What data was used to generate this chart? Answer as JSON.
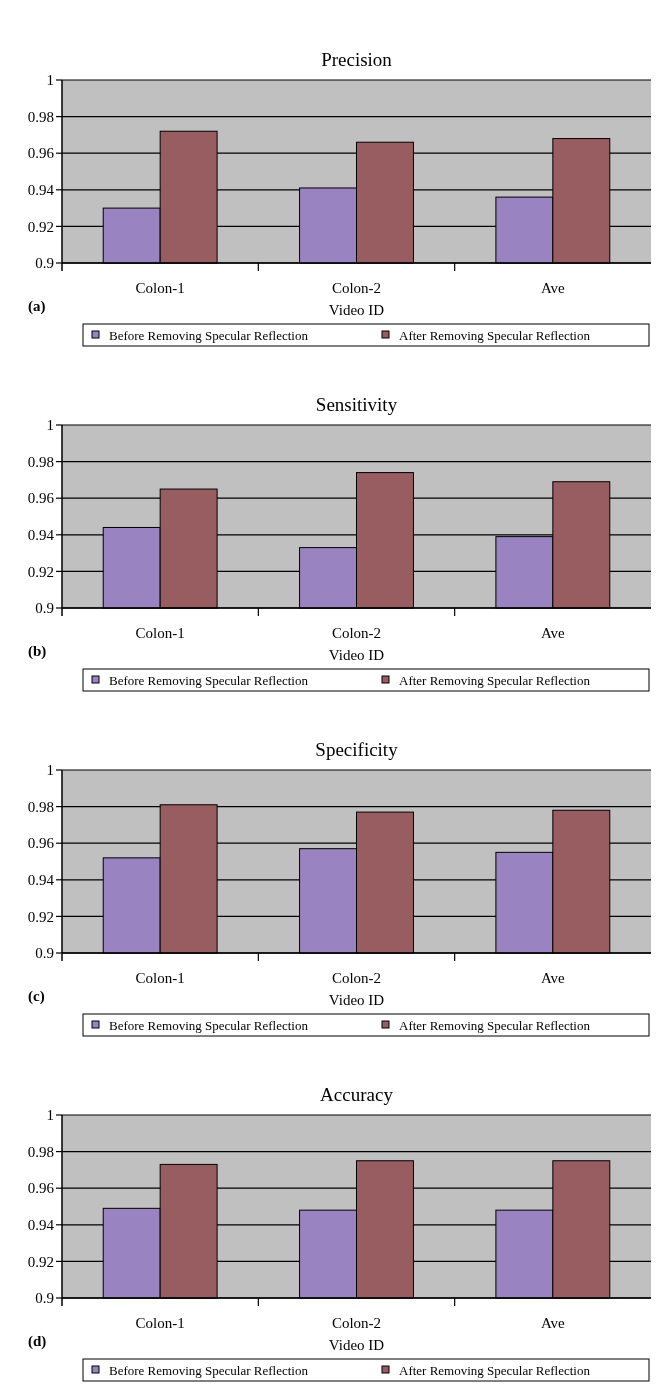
{
  "chart_data": [
    {
      "type": "bar",
      "title": "Precision",
      "xlabel": "Video ID",
      "categories": [
        "Colon-1",
        "Colon-2",
        "Ave"
      ],
      "annotations": [
        "(a)"
      ],
      "ylim": [
        0.9,
        1
      ],
      "yticks": [
        0.9,
        0.92,
        0.94,
        0.96,
        0.98,
        1
      ],
      "grid": "y",
      "legend": "bottom",
      "series": [
        {
          "name": "Before Removing Specular Reflection",
          "color": "#9983c0",
          "values": [
            0.93,
            0.941,
            0.936
          ]
        },
        {
          "name": "After Removing Specular Reflection",
          "color": "#985d60",
          "values": [
            0.972,
            0.966,
            0.968
          ]
        }
      ]
    },
    {
      "type": "bar",
      "title": "Sensitivity",
      "xlabel": "Video ID",
      "categories": [
        "Colon-1",
        "Colon-2",
        "Ave"
      ],
      "annotations": [
        "(b)"
      ],
      "ylim": [
        0.9,
        1
      ],
      "yticks": [
        0.9,
        0.92,
        0.94,
        0.96,
        0.98,
        1
      ],
      "grid": "y",
      "legend": "bottom",
      "series": [
        {
          "name": "Before Removing Specular Reflection",
          "color": "#9983c0",
          "values": [
            0.944,
            0.933,
            0.939
          ]
        },
        {
          "name": "After Removing Specular Reflection",
          "color": "#985d60",
          "values": [
            0.965,
            0.974,
            0.969
          ]
        }
      ]
    },
    {
      "type": "bar",
      "title": "Specificity",
      "xlabel": "Video ID",
      "categories": [
        "Colon-1",
        "Colon-2",
        "Ave"
      ],
      "annotations": [
        "(c)"
      ],
      "ylim": [
        0.9,
        1
      ],
      "yticks": [
        0.9,
        0.92,
        0.94,
        0.96,
        0.98,
        1
      ],
      "grid": "y",
      "legend": "bottom",
      "series": [
        {
          "name": "Before Removing Specular Reflection",
          "color": "#9983c0",
          "values": [
            0.952,
            0.957,
            0.955
          ]
        },
        {
          "name": "After Removing Specular Reflection",
          "color": "#985d60",
          "values": [
            0.981,
            0.977,
            0.978
          ]
        }
      ]
    },
    {
      "type": "bar",
      "title": "Accuracy",
      "xlabel": "Video ID",
      "categories": [
        "Colon-1",
        "Colon-2",
        "Ave"
      ],
      "annotations": [
        "(d)"
      ],
      "ylim": [
        0.9,
        1
      ],
      "yticks": [
        0.9,
        0.92,
        0.94,
        0.96,
        0.98,
        1
      ],
      "grid": "y",
      "legend": "bottom",
      "series": [
        {
          "name": "Before Removing Specular Reflection",
          "color": "#9983c0",
          "values": [
            0.949,
            0.948,
            0.948
          ]
        },
        {
          "name": "After Removing Specular Reflection",
          "color": "#985d60",
          "values": [
            0.973,
            0.975,
            0.975
          ]
        }
      ]
    }
  ]
}
